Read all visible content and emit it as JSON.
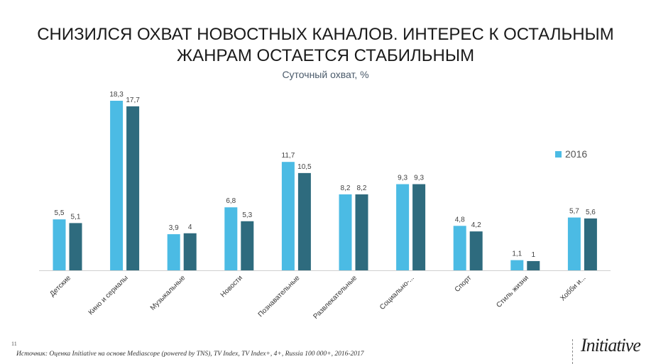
{
  "page_number": "11",
  "source": "Источник: Оценка Initiative на основе Mediascope (powered by TNS), TV Index, TV Index+, 4+, Russia 100 000+, 2016-2017",
  "logo_text": "Initiative",
  "chart_data": {
    "type": "bar",
    "title": "СНИЗИЛСЯ ОХВАТ НОВОСТНЫХ КАНАЛОВ. ИНТЕРЕС К ОСТАЛЬНЫМ ЖАНРАМ ОСТАЕТСЯ СТАБИЛЬНЫМ",
    "subtitle": "Суточный охват, %",
    "xlabel": "",
    "ylabel": "",
    "ylim": [
      0,
      18.3
    ],
    "grid": false,
    "legend_position": "right",
    "categories": [
      "Детские",
      "Кино и сериалы",
      "Музыкальные",
      "Новости",
      "Познавательные",
      "Развлекательные",
      "Социально-...",
      "Спорт",
      "Стиль жизни",
      "Хобби и..."
    ],
    "series": [
      {
        "name": "2016",
        "color": "#4bbbe4",
        "values": [
          5.5,
          18.3,
          3.9,
          6.8,
          11.7,
          8.2,
          9.3,
          4.8,
          1.1,
          5.7
        ],
        "labels": [
          "5,5",
          "18,3",
          "3,9",
          "6,8",
          "11,7",
          "8,2",
          "9,3",
          "4,8",
          "1,1",
          "5,7"
        ]
      },
      {
        "name": "",
        "color": "#2e6b7e",
        "values": [
          5.1,
          17.7,
          4,
          5.3,
          10.5,
          8.2,
          9.3,
          4.2,
          1,
          5.6
        ],
        "labels": [
          "5,1",
          "17,7",
          "4",
          "5,3",
          "10,5",
          "8,2",
          "9,3",
          "4,2",
          "1",
          "5,6"
        ]
      }
    ]
  }
}
